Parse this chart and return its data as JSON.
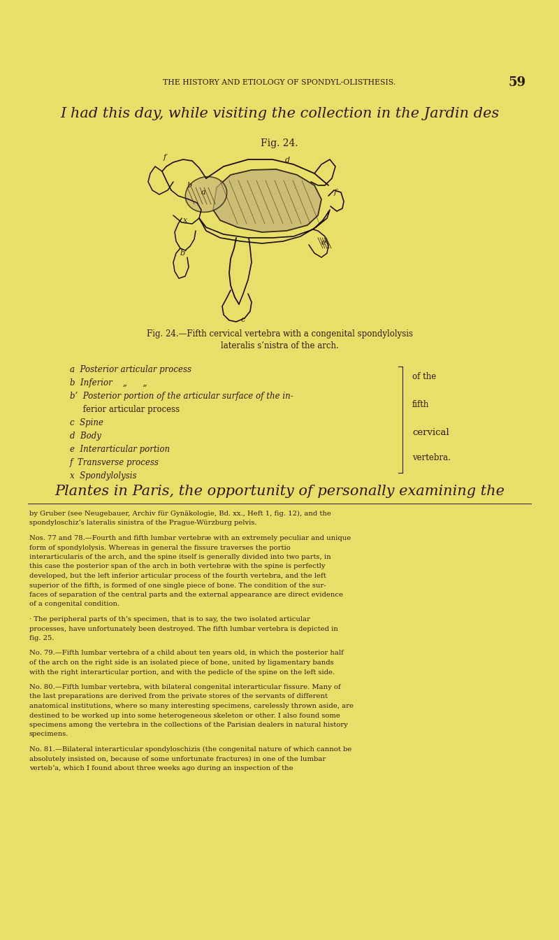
{
  "bg_color": "#e8df6a",
  "page_width": 8.0,
  "page_height": 13.44,
  "header_text": "THE HISTORY AND ETIOLOGY OF SPONDYL-OLISTHESIS.",
  "page_number": "59",
  "intro_text": "I had this day, while visiting the collection in the Jardin des",
  "fig_label": "Fig. 24.",
  "fig_caption_line1": "Fig. 24.—Fifth cervical vertebra with a congenital spondylolysis",
  "fig_caption_line2": "lateralis s’nistra of the arch.",
  "legend_items": [
    [
      "a",
      "Posterior articular process"
    ],
    [
      "b",
      "Inferior    „      „"
    ],
    [
      "b’",
      "Posterior portion of the articular surface of the in-"
    ],
    [
      "",
      "     ferior articular process"
    ],
    [
      "c",
      "Spine"
    ],
    [
      "d",
      "Body"
    ],
    [
      "e",
      "Interarticular portion"
    ],
    [
      "f",
      "Transverse process"
    ],
    [
      "x",
      "Spondylolysis"
    ]
  ],
  "brace_label_line1": "of the",
  "brace_label_line2": "fifth",
  "brace_label_line3": "cervical",
  "brace_label_line4": "vertebra.",
  "large_text": "Plantes in Paris, the opportunity of personally examining the",
  "body_paragraphs": [
    "by Gruber (see Neugebauer, Archiv für Gynäkologie, Bd. xx., Heft 1, fig. 12), and the spondyloschiz’s lateralis sinistra of the Prague-Würzburg pelvis.",
    "Nos. 77 and 78.—Fourth and fifth lumbar vertebræ with an extremely peculiar and unique form of spondylolysis.  Whereas in general the fissure traverses the portio interarticularis of the arch, and the spine itself is generally divided into two parts, in this case the posterior span of the arch in both vertebræ with the spine is perfectly developed, but the left inferior articular process of the fourth vertebra, and the left superior of the fifth, is formed of one single piece of bone.  The condition of the sur- faces of separation of the central parts and the external appearance are direct evidence of a congenital condition.",
    "· The peripheral parts of th’s specimen, that is to say, the two isolated articular processes, have unfortunately been destroyed.  The fifth lumbar vertebra is depicted in fig. 25.",
    "No. 79.—Fifth lumbar vertebra of a child about ten years old, in which the posterior half of the arch on the right side is an isolated piece of bone, united by ligamentary bands with the right interarticular portion, and with the pedicle of the spine on the left side.",
    "No. 80.—Fifth lumbar vertebra, with bilateral congenital interarticular fissure. Many of the last preparations are derived from the private stores of the servants of different anatomical institutions, where so many interesting specimens, carelessly thrown aside, are destined to be worked up into some heterogeneous skeleton or other.  I also found some specimens among the vertebra in the collections of the Parisian dealers in natural history specimens.",
    "No. 81.—Bilateral interarticular spondyloschizis (the congenital nature of which cannot be absolutely insisted on, because of some unfortunate fractures) in one of the lumbar vertebʼa, which I found about three weeks ago during an inspection of the"
  ],
  "text_color": "#2a1a05",
  "header_color": "#2a1a05",
  "figure_color": "#1a0e03",
  "fig_fill_color": "#c8b878"
}
